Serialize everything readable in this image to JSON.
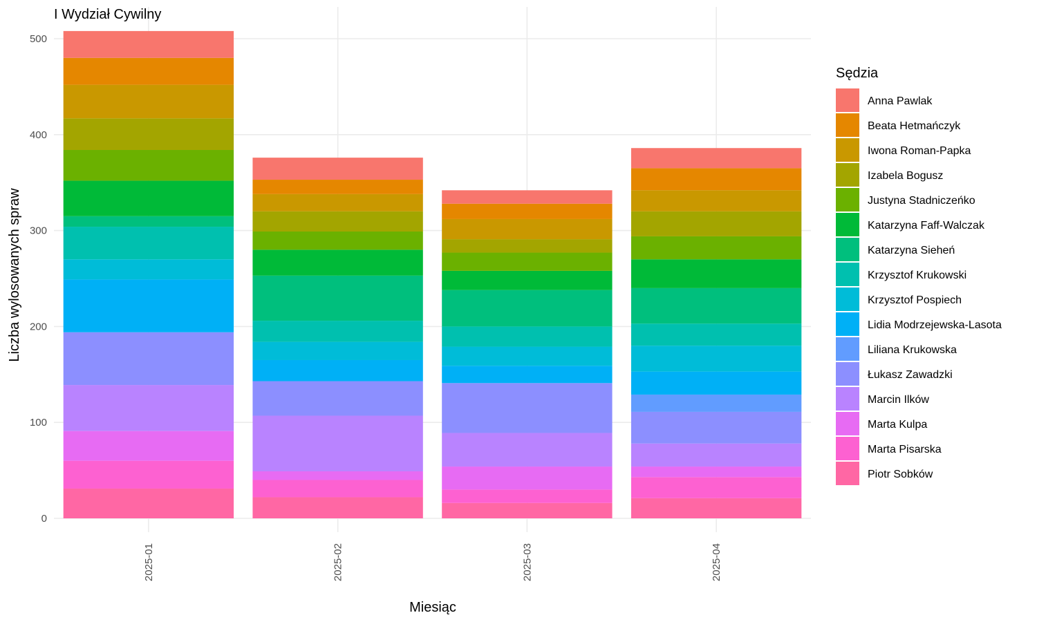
{
  "chart_data": {
    "type": "bar",
    "stacked": true,
    "title": "I Wydział Cywilny",
    "xlabel": "Miesiąc",
    "ylabel": "Liczba wylosowanych spraw",
    "categories": [
      "2025-01",
      "2025-02",
      "2025-03",
      "2025-04"
    ],
    "ylim": [
      0,
      530
    ],
    "yticks": [
      0,
      100,
      200,
      300,
      400,
      500
    ],
    "grid": true,
    "legend_title": "Sędzia",
    "legend_position": "right",
    "series": [
      {
        "name": "Anna Pawlak",
        "color": "#F8766D",
        "values": [
          28,
          23,
          14,
          21
        ]
      },
      {
        "name": "Beata Hetmańczyk",
        "color": "#E58700",
        "values": [
          28,
          15,
          16,
          23
        ]
      },
      {
        "name": "Iwona Roman-Papka",
        "color": "#C99800",
        "values": [
          35,
          18,
          21,
          22
        ]
      },
      {
        "name": "Izabela Bogusz",
        "color": "#A3A500",
        "values": [
          33,
          21,
          14,
          26
        ]
      },
      {
        "name": "Justyna Stadniczeńko",
        "color": "#6BB100",
        "values": [
          32,
          19,
          19,
          24
        ]
      },
      {
        "name": "Katarzyna Faff-Walczak",
        "color": "#00BA38",
        "values": [
          37,
          27,
          20,
          30
        ]
      },
      {
        "name": "Katarzyna Sieheń",
        "color": "#00BF7D",
        "values": [
          11,
          47,
          38,
          37
        ]
      },
      {
        "name": "Krzysztof Krukowski",
        "color": "#00C0AF",
        "values": [
          34,
          22,
          21,
          23
        ]
      },
      {
        "name": "Krzysztof Pospiech",
        "color": "#00BCD8",
        "values": [
          21,
          19,
          20,
          27
        ]
      },
      {
        "name": "Lidia Modrzejewska-Lasota",
        "color": "#00B0F6",
        "values": [
          55,
          22,
          18,
          24
        ]
      },
      {
        "name": "Liliana Krukowska",
        "color": "#619CFF",
        "values": [
          0,
          0,
          0,
          18
        ]
      },
      {
        "name": "Łukasz Zawadzki",
        "color": "#8C8FFF",
        "values": [
          55,
          36,
          52,
          33
        ]
      },
      {
        "name": "Marcin Ilków",
        "color": "#B983FF",
        "values": [
          48,
          58,
          35,
          24
        ]
      },
      {
        "name": "Marta Kulpa",
        "color": "#E76BF3",
        "values": [
          31,
          9,
          24,
          11
        ]
      },
      {
        "name": "Marta Pisarska",
        "color": "#FD61D1",
        "values": [
          29,
          18,
          14,
          22
        ]
      },
      {
        "name": "Piotr Sobków",
        "color": "#FF67A4",
        "values": [
          31,
          22,
          16,
          21
        ]
      }
    ]
  }
}
